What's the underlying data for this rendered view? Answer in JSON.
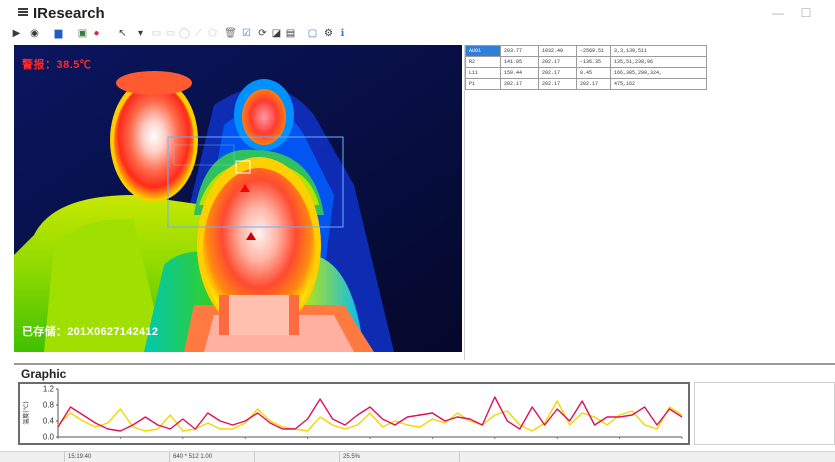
{
  "app": {
    "title": "IResearch",
    "window_controls": {
      "minimize": "—",
      "maximize": "☐",
      "close": "✕"
    }
  },
  "toolbar": {
    "items": [
      {
        "name": "play-icon",
        "glyph": "▶",
        "color": "#3a3a3a"
      },
      {
        "name": "record-icon",
        "glyph": "◉",
        "color": "#3a3a3a"
      },
      {
        "name": "save-icon",
        "glyph": "▆",
        "color": "#1f5fbf"
      },
      {
        "name": "open-image-icon",
        "glyph": "▣",
        "color": "#3a7a3a"
      },
      {
        "name": "record-dot-icon",
        "glyph": "●",
        "color": "#d62a4a"
      },
      {
        "name": "cursor-icon",
        "glyph": "↖",
        "color": "#3a3a3a"
      },
      {
        "name": "caret-icon",
        "glyph": "▾",
        "color": "#3a3a3a"
      },
      {
        "name": "rectangle-tool-icon",
        "glyph": "▭",
        "color": "#c9c9c9"
      },
      {
        "name": "rectangle2-tool-icon",
        "glyph": "▭",
        "color": "#c9c9c9"
      },
      {
        "name": "ellipse-tool-icon",
        "glyph": "◯",
        "color": "#c9c9c9"
      },
      {
        "name": "line-tool-icon",
        "glyph": "⟋",
        "color": "#c9c9c9"
      },
      {
        "name": "polygon-tool-icon",
        "glyph": "⬠",
        "color": "#c9c9c9"
      },
      {
        "name": "trash-icon",
        "glyph": "🗑",
        "color": "#777777"
      },
      {
        "name": "checkbox-icon",
        "glyph": "☑",
        "color": "#2f7fd6"
      },
      {
        "name": "rotate-icon",
        "glyph": "⟳",
        "color": "#3a3a3a"
      },
      {
        "name": "graph-icon",
        "glyph": "◪",
        "color": "#3a3a3a"
      },
      {
        "name": "gallery-icon",
        "glyph": "▤",
        "color": "#3a3a3a"
      },
      {
        "name": "window-icon",
        "glyph": "▢",
        "color": "#2f7fd6"
      },
      {
        "name": "settings-icon",
        "glyph": "⚙",
        "color": "#3a3a3a"
      },
      {
        "name": "info-icon",
        "glyph": "ℹ",
        "color": "#2f7fd6"
      }
    ]
  },
  "viewer": {
    "alarm_text": "警报：38.5℃",
    "saved_text": "已存储：201X0627142412"
  },
  "table": {
    "rows": [
      [
        "AU01",
        "203.77",
        "1032.40",
        "-2569.51",
        "3,3,139,511"
      ],
      [
        "R2",
        "141.05",
        "202.17",
        "-136.35",
        "135,51,238,96"
      ],
      [
        "L11",
        "159.44",
        "202.17",
        "0.45",
        "166,385,299,324,"
      ],
      [
        "P1",
        "202.17",
        "202.17",
        "202.17",
        "475,162"
      ]
    ],
    "selected_row": 0
  },
  "graphic": {
    "title": "Graphic"
  },
  "chart_data": {
    "type": "line",
    "title": "",
    "xlabel": "",
    "ylabel": "温度(℃)",
    "ylim": [
      0,
      1.2
    ],
    "yticks": [
      "1.2",
      "0.8",
      "0.4",
      "0.0"
    ],
    "x": [
      0,
      1,
      2,
      3,
      4,
      5,
      6,
      7,
      8,
      9,
      10,
      11,
      12,
      13,
      14,
      15,
      16,
      17,
      18,
      19,
      20,
      21,
      22,
      23,
      24,
      25,
      26,
      27,
      28,
      29,
      30,
      31,
      32,
      33,
      34,
      35,
      36,
      37,
      38,
      39,
      40,
      41,
      42,
      43,
      44,
      45,
      46,
      47,
      48,
      49,
      50
    ],
    "series": [
      {
        "color": "#e0105a",
        "values": [
          0.25,
          0.75,
          0.55,
          0.35,
          0.2,
          0.15,
          0.3,
          0.5,
          0.3,
          0.2,
          0.45,
          0.2,
          0.6,
          0.4,
          0.3,
          0.4,
          0.6,
          0.35,
          0.2,
          0.2,
          0.45,
          0.95,
          0.45,
          0.3,
          0.55,
          0.75,
          0.45,
          0.3,
          0.5,
          0.55,
          0.6,
          0.4,
          0.5,
          0.45,
          0.3,
          1.0,
          0.4,
          0.2,
          0.75,
          0.3,
          0.7,
          0.4,
          0.9,
          0.3,
          0.5,
          0.5,
          0.55,
          0.75,
          0.3,
          0.7,
          0.5
        ]
      },
      {
        "color": "#f0d800",
        "values": [
          0.3,
          0.6,
          0.4,
          0.25,
          0.35,
          0.7,
          0.25,
          0.15,
          0.2,
          0.55,
          0.15,
          0.2,
          0.35,
          0.2,
          0.2,
          0.35,
          0.7,
          0.4,
          0.25,
          0.2,
          0.15,
          0.5,
          0.3,
          0.2,
          0.3,
          0.6,
          0.25,
          0.4,
          0.3,
          0.25,
          0.45,
          0.35,
          0.6,
          0.4,
          0.3,
          0.55,
          0.65,
          0.3,
          0.15,
          0.35,
          0.9,
          0.3,
          0.6,
          0.5,
          0.3,
          0.55,
          0.65,
          0.3,
          0.2,
          0.75,
          0.55
        ]
      }
    ]
  },
  "statusbar": {
    "cells": [
      "",
      "15:19:40",
      "640 * 512 1.00",
      "",
      "25.5%"
    ]
  }
}
